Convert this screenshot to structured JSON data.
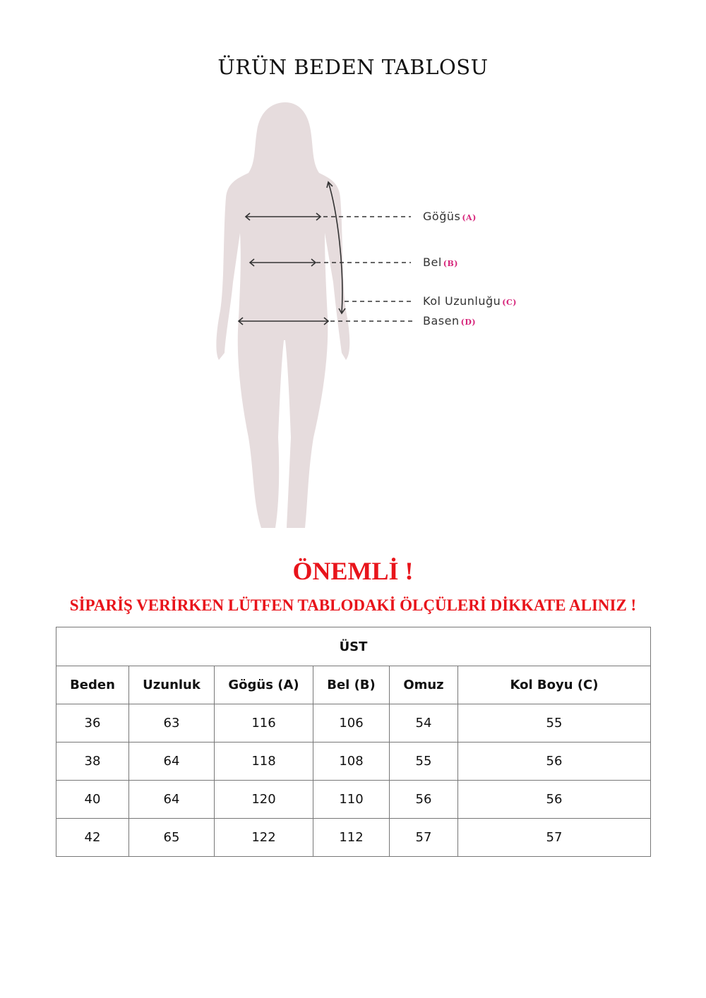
{
  "title": "ÜRÜN BEDEN TABLOSU",
  "diagram": {
    "body_color": "#e6dcdd",
    "labels": [
      {
        "text": "Göğüs",
        "code": "(A)"
      },
      {
        "text": "Bel",
        "code": "(B)"
      },
      {
        "text": "Kol Uzunluğu",
        "code": "(C)"
      },
      {
        "text": "Basen",
        "code": "(D)"
      }
    ]
  },
  "important": "ÖNEMLİ !",
  "warning": "SİPARİŞ VERİRKEN LÜTFEN TABLODAKİ ÖLÇÜLERİ DİKKATE ALINIZ !",
  "accent_color": "#e8141b",
  "table": {
    "section": "ÜST",
    "headers": [
      "Beden",
      "Uzunluk",
      "Gögüs (A)",
      "Bel (B)",
      "Omuz",
      "Kol Boyu (C)"
    ],
    "rows": [
      [
        "36",
        "63",
        "116",
        "106",
        "54",
        "55"
      ],
      [
        "38",
        "64",
        "118",
        "108",
        "55",
        "56"
      ],
      [
        "40",
        "64",
        "120",
        "110",
        "56",
        "56"
      ],
      [
        "42",
        "65",
        "122",
        "112",
        "57",
        "57"
      ]
    ]
  }
}
